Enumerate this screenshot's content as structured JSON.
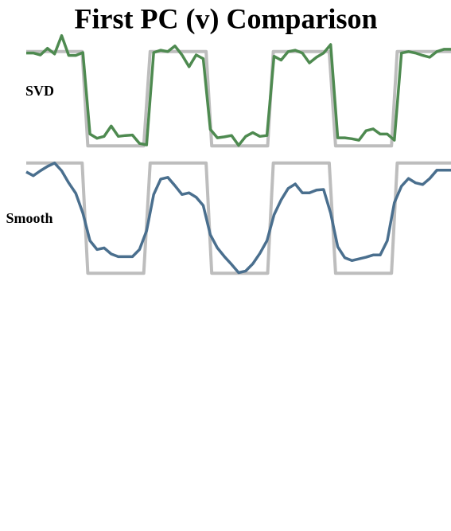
{
  "title": "First PC (v) Comparison",
  "chart_data": [
    {
      "type": "line",
      "label": "SVD",
      "xlim": [
        0,
        60
      ],
      "ylim": [
        -1.2,
        1.2
      ],
      "series": [
        {
          "color": "#bdbdbd",
          "x": [
            0,
            7.9,
            8.7,
            16.6,
            17.5,
            25.4,
            26.2,
            34.1,
            34.9,
            42.8,
            43.7,
            51.6,
            52.4,
            60
          ],
          "values": [
            1,
            1,
            -1,
            -1,
            1,
            1,
            -1,
            -1,
            1,
            1,
            -1,
            -1,
            1,
            1
          ]
        },
        {
          "color": "#4e8a50",
          "x": [
            0,
            1,
            2,
            3,
            4,
            5,
            6,
            7,
            8,
            9,
            10,
            11,
            12,
            13,
            14,
            15,
            16,
            17,
            18,
            19,
            20,
            21,
            22,
            23,
            24,
            25,
            26,
            27,
            28,
            29,
            30,
            31,
            32,
            33,
            34,
            35,
            36,
            37,
            38,
            39,
            40,
            41,
            42,
            43,
            44,
            45,
            46,
            47,
            48,
            49,
            50,
            51,
            52,
            53,
            54,
            55,
            56,
            57,
            58,
            59,
            60
          ],
          "values": [
            0.97,
            0.97,
            0.93,
            1.07,
            0.95,
            1.34,
            0.92,
            0.92,
            0.98,
            -0.75,
            -0.84,
            -0.8,
            -0.58,
            -0.8,
            -0.78,
            -0.77,
            -0.95,
            -0.98,
            0.98,
            1.03,
            1.0,
            1.12,
            0.93,
            0.68,
            0.93,
            0.85,
            -0.65,
            -0.83,
            -0.81,
            -0.78,
            -0.99,
            -0.8,
            -0.72,
            -0.8,
            -0.78,
            0.9,
            0.82,
            1.0,
            1.03,
            0.97,
            0.76,
            0.88,
            0.97,
            1.15,
            -0.83,
            -0.83,
            -0.85,
            -0.88,
            -0.68,
            -0.64,
            -0.75,
            -0.75,
            -0.88,
            0.97,
            1.0,
            0.97,
            0.92,
            0.88,
            1.0,
            1.05,
            1.05
          ]
        }
      ]
    },
    {
      "type": "line",
      "label": "Smooth",
      "xlim": [
        0,
        60
      ],
      "ylim": [
        -1.2,
        1.2
      ],
      "series": [
        {
          "color": "#bdbdbd",
          "x": [
            0,
            7.9,
            8.7,
            16.6,
            17.5,
            25.4,
            26.2,
            34.1,
            34.9,
            42.8,
            43.7,
            51.6,
            52.4,
            60
          ],
          "values": [
            1,
            1,
            -1,
            -1,
            1,
            1,
            -1,
            -1,
            1,
            1,
            -1,
            -1,
            1,
            1
          ]
        },
        {
          "color": "#4a6f8e",
          "x": [
            0,
            1,
            2,
            3,
            4,
            5,
            6,
            7,
            8,
            9,
            10,
            11,
            12,
            13,
            14,
            15,
            16,
            17,
            18,
            19,
            20,
            21,
            22,
            23,
            24,
            25,
            26,
            27,
            28,
            29,
            30,
            31,
            32,
            33,
            34,
            35,
            36,
            37,
            38,
            39,
            40,
            41,
            42,
            43,
            44,
            45,
            46,
            47,
            48,
            49,
            50,
            51,
            52,
            53,
            54,
            55,
            56,
            57,
            58,
            59,
            60
          ],
          "values": [
            0.84,
            0.77,
            0.86,
            0.94,
            1.0,
            0.86,
            0.64,
            0.45,
            0.09,
            -0.41,
            -0.57,
            -0.54,
            -0.65,
            -0.7,
            -0.7,
            -0.7,
            -0.57,
            -0.23,
            0.43,
            0.71,
            0.74,
            0.59,
            0.43,
            0.46,
            0.38,
            0.23,
            -0.3,
            -0.54,
            -0.7,
            -0.84,
            -0.99,
            -0.96,
            -0.83,
            -0.64,
            -0.41,
            0.06,
            0.33,
            0.54,
            0.62,
            0.46,
            0.46,
            0.51,
            0.52,
            0.09,
            -0.52,
            -0.72,
            -0.77,
            -0.74,
            -0.71,
            -0.67,
            -0.67,
            -0.41,
            0.28,
            0.58,
            0.72,
            0.64,
            0.61,
            0.72,
            0.87,
            0.87,
            0.87
          ]
        }
      ]
    }
  ]
}
